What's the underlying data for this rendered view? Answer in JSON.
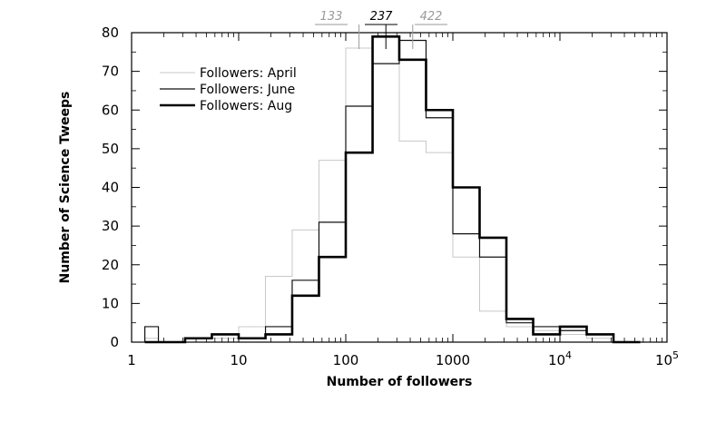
{
  "chart_data": {
    "type": "step-histogram",
    "xlabel": "Number of followers",
    "ylabel": "Number of Science Tweeps",
    "xscale": "log",
    "xlim": [
      1,
      100000
    ],
    "ylim": [
      0,
      80
    ],
    "x_ticks": [
      {
        "value": 1,
        "label": "1",
        "sup": ""
      },
      {
        "value": 10,
        "label": "10",
        "sup": ""
      },
      {
        "value": 100,
        "label": "100",
        "sup": ""
      },
      {
        "value": 1000,
        "label": "1000",
        "sup": ""
      },
      {
        "value": 10000,
        "label": "10",
        "sup": "4"
      },
      {
        "value": 100000,
        "label": "10",
        "sup": "5"
      }
    ],
    "y_ticks": [
      0,
      10,
      20,
      30,
      40,
      50,
      60,
      70,
      80
    ],
    "bin_edges": [
      1.33,
      1.78,
      3.16,
      5.62,
      10,
      17.8,
      31.6,
      56.2,
      100,
      178,
      316,
      562,
      1000,
      1778,
      3162,
      5623,
      10000,
      17783,
      31623,
      56234
    ],
    "legend_position": "top-left",
    "series": [
      {
        "name": "Followers: April",
        "color": "#c8c8c8",
        "width": 1,
        "values": [
          1,
          0,
          1,
          1,
          4,
          17,
          29,
          47,
          76,
          79,
          52,
          49,
          22,
          8,
          4,
          3,
          2,
          1,
          0
        ]
      },
      {
        "name": "Followers: June",
        "color": "#111111",
        "width": 1.2,
        "values": [
          4,
          0,
          1,
          2,
          1,
          4,
          16,
          31,
          61,
          72,
          78,
          58,
          28,
          22,
          5,
          4,
          3,
          2,
          0
        ]
      },
      {
        "name": "Followers: Aug",
        "color": "#000000",
        "width": 2.6,
        "values": [
          0,
          0,
          1,
          2,
          1,
          2,
          12,
          22,
          49,
          79,
          73,
          60,
          40,
          27,
          6,
          2,
          4,
          2,
          0
        ]
      }
    ],
    "medians": [
      {
        "label": "133",
        "value": 133,
        "color": "#9a9a9a"
      },
      {
        "label": "237",
        "value": 237,
        "color": "#000000"
      },
      {
        "label": "422",
        "value": 422,
        "color": "#9a9a9a"
      }
    ]
  }
}
